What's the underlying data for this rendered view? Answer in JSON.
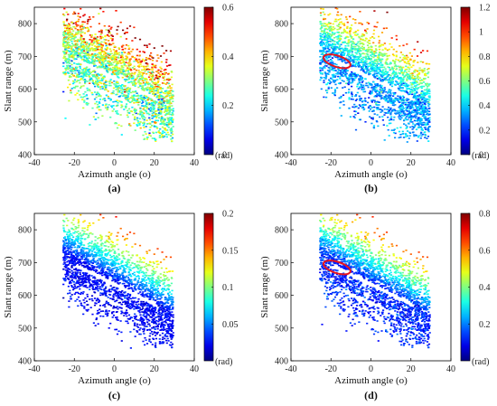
{
  "chart_data": [
    {
      "type": "scatter",
      "panel_label": "(a)",
      "xlabel": "Azimuth angle (o)",
      "ylabel": "Slant range (m)",
      "xlim": [
        -40,
        40
      ],
      "ylim": [
        400,
        850
      ],
      "xticks": [
        "-40",
        "-20",
        "0",
        "20",
        "40"
      ],
      "yticks": [
        "400",
        "500",
        "600",
        "700",
        "800"
      ],
      "colorbar": {
        "colormap": "jet",
        "range": [
          0,
          0.6
        ],
        "ticks": [
          "0",
          "0.2",
          "0.4",
          "0.6"
        ],
        "unit": "(rad)"
      },
      "value_mean": 0.28,
      "value_top_mean": 0.38,
      "ellipse": null,
      "sparse": false
    },
    {
      "type": "scatter",
      "panel_label": "(b)",
      "xlabel": "Azimuth angle (o)",
      "ylabel": "Slant range (m)",
      "xlim": [
        -40,
        40
      ],
      "ylim": [
        400,
        850
      ],
      "xticks": [
        "-40",
        "-20",
        "0",
        "20",
        "40"
      ],
      "yticks": [
        "400",
        "500",
        "600",
        "700",
        "800"
      ],
      "colorbar": {
        "colormap": "jet",
        "range": [
          0,
          1.2
        ],
        "ticks": [
          "0",
          "0.2",
          "0.4",
          "0.6",
          "0.8",
          "1",
          "1.2"
        ],
        "unit": "(rad)"
      },
      "value_mean": 0.32,
      "value_top_mean": 0.55,
      "ellipse": {
        "x": -17,
        "y": 685,
        "rx": 3.2,
        "ry": 38,
        "color": "#e8141c"
      },
      "sparse": false
    },
    {
      "type": "scatter",
      "panel_label": "(c)",
      "xlabel": "Azimuth angle (o)",
      "ylabel": "Slant range (m)",
      "xlim": [
        -40,
        40
      ],
      "ylim": [
        400,
        850
      ],
      "xticks": [
        "-40",
        "-20",
        "0",
        "20",
        "40"
      ],
      "yticks": [
        "400",
        "500",
        "600",
        "700",
        "800"
      ],
      "colorbar": {
        "colormap": "jet",
        "range": [
          0,
          0.2
        ],
        "ticks": [
          "0.05",
          "0.1",
          "0.15",
          "0.2"
        ],
        "unit": "(rad)"
      },
      "value_mean": 0.025,
      "value_top_mean": 0.07,
      "ellipse": null,
      "sparse": false
    },
    {
      "type": "scatter",
      "panel_label": "(d)",
      "xlabel": "Azimuth angle (o)",
      "ylabel": "Slant range (m)",
      "xlim": [
        -40,
        40
      ],
      "ylim": [
        400,
        850
      ],
      "xticks": [
        "-40",
        "-20",
        "0",
        "20",
        "40"
      ],
      "yticks": [
        "400",
        "500",
        "600",
        "700",
        "800"
      ],
      "colorbar": {
        "colormap": "jet",
        "range": [
          0,
          0.8
        ],
        "ticks": [
          "0.2",
          "0.4",
          "0.6",
          "0.8"
        ],
        "unit": "(rad)"
      },
      "value_mean": 0.13,
      "value_top_mean": 0.3,
      "ellipse": {
        "x": -17,
        "y": 685,
        "rx": 3.2,
        "ry": 38,
        "color": "#e8141c"
      },
      "sparse": false
    }
  ]
}
